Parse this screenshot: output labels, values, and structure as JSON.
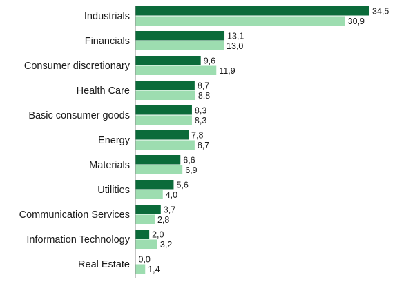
{
  "chart_data": {
    "type": "bar",
    "orientation": "horizontal",
    "categories": [
      "Industrials",
      "Financials",
      "Consumer discretionary",
      "Health Care",
      "Basic consumer goods",
      "Energy",
      "Materials",
      "Utilities",
      "Communication Services",
      "Information Technology",
      "Real Estate"
    ],
    "series": [
      {
        "values": [
          34.5,
          13.1,
          9.6,
          8.7,
          8.3,
          7.8,
          6.6,
          5.6,
          3.7,
          2.0,
          0.0
        ],
        "labels": [
          "34,5",
          "13,1",
          "9,6",
          "8,7",
          "8,3",
          "7,8",
          "6,6",
          "5,6",
          "3,7",
          "2,0",
          "0,0"
        ],
        "color": "#0b6b3a"
      },
      {
        "values": [
          30.9,
          13.0,
          11.9,
          8.8,
          8.3,
          8.7,
          6.9,
          4.0,
          2.8,
          3.2,
          1.4
        ],
        "labels": [
          "30,9",
          "13,0",
          "11,9",
          "8,8",
          "8,3",
          "8,7",
          "6,9",
          "4,0",
          "2,8",
          "3,2",
          "1,4"
        ],
        "color": "#9dddb0"
      }
    ],
    "xlim": [
      0,
      36
    ],
    "grid": false,
    "legend": "none",
    "axis_color": "#8c8c8c"
  }
}
